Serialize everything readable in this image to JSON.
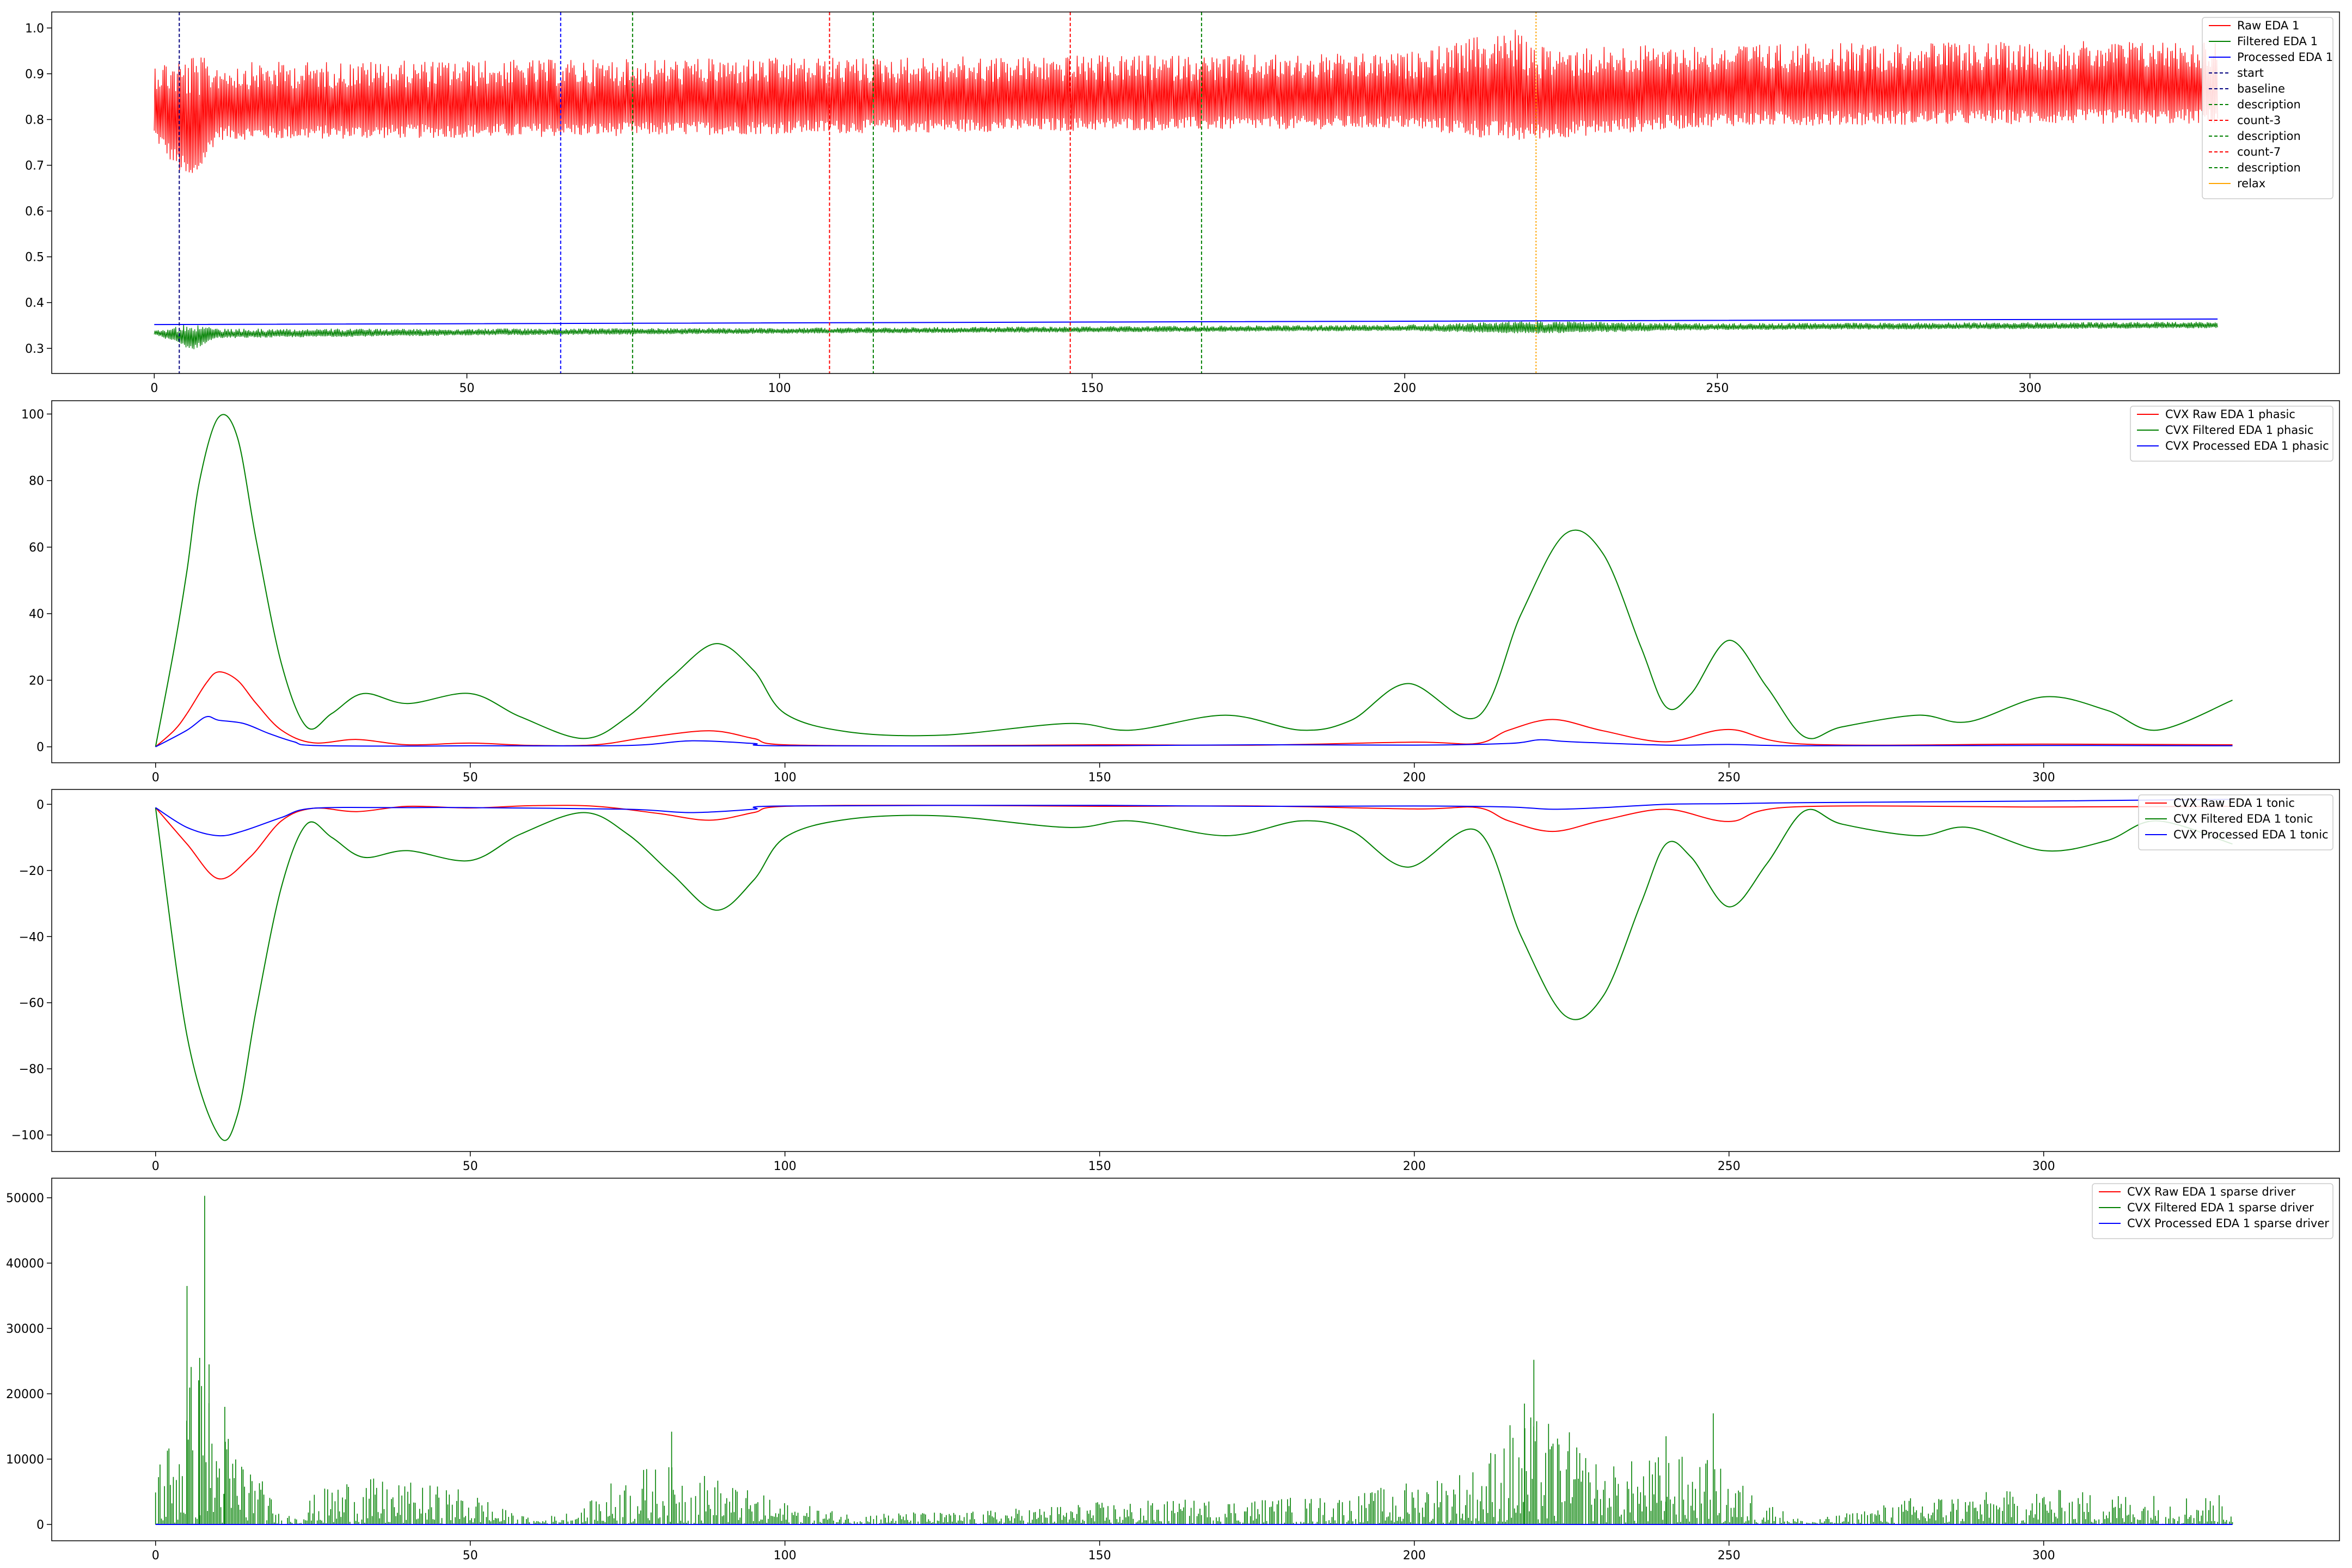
{
  "chart_data": [
    {
      "type": "line",
      "id": "raw-eda",
      "xlim": [
        -16.4,
        349.5
      ],
      "ylim": [
        0.245,
        1.035
      ],
      "xticks": [
        0,
        50,
        100,
        150,
        200,
        250,
        300
      ],
      "yticks": [
        0.3,
        0.4,
        0.5,
        0.6,
        0.7,
        0.8,
        0.9,
        1.0
      ],
      "ytick_labels": [
        "0.3",
        "0.4",
        "0.5",
        "0.6",
        "0.7",
        "0.8",
        "0.9",
        "1.0"
      ],
      "legend": "top-right",
      "series": [
        {
          "name": "Raw EDA 1",
          "color": "#ff0000",
          "style": "noise-band",
          "x": [
            0,
            3,
            6,
            10,
            50,
            100,
            150,
            200,
            218,
            220,
            250,
            300,
            330
          ],
          "low": [
            0.755,
            0.7,
            0.65,
            0.755,
            0.76,
            0.768,
            0.775,
            0.78,
            0.75,
            0.755,
            0.785,
            0.79,
            0.79
          ],
          "high": [
            0.93,
            0.935,
            0.945,
            0.925,
            0.93,
            0.935,
            0.94,
            0.945,
            1.0,
            0.96,
            0.965,
            0.97,
            0.975
          ]
        },
        {
          "name": "Filtered EDA 1",
          "color": "#008000",
          "style": "noise-band",
          "x": [
            0,
            3,
            6,
            10,
            50,
            100,
            150,
            200,
            220,
            250,
            300,
            330
          ],
          "low": [
            0.33,
            0.315,
            0.295,
            0.322,
            0.328,
            0.332,
            0.335,
            0.338,
            0.332,
            0.34,
            0.342,
            0.344
          ],
          "high": [
            0.34,
            0.345,
            0.36,
            0.343,
            0.343,
            0.345,
            0.348,
            0.352,
            0.36,
            0.355,
            0.357,
            0.358
          ]
        },
        {
          "name": "Processed EDA 1",
          "color": "#0000ff",
          "style": "line",
          "x": [
            0,
            330
          ],
          "y": [
            0.352,
            0.364
          ]
        }
      ],
      "events": [
        {
          "name": "start",
          "x": 4,
          "color": "#000080"
        },
        {
          "name": "baseline",
          "x": 65,
          "color": "#0000ff"
        },
        {
          "name": "description",
          "x": 76.5,
          "color": "#008000"
        },
        {
          "name": "count-3",
          "x": 108,
          "color": "#ff0000"
        },
        {
          "name": "description",
          "x": 115,
          "color": "#008000"
        },
        {
          "name": "count-7",
          "x": 146.5,
          "color": "#ff0000"
        },
        {
          "name": "description",
          "x": 167.5,
          "color": "#008000"
        },
        {
          "name": "relax",
          "x": 221,
          "color": "#ffa500"
        }
      ],
      "legend_entries": [
        {
          "label": "Raw EDA 1",
          "color": "#ff0000",
          "dash": "solid"
        },
        {
          "label": "Filtered EDA 1",
          "color": "#008000",
          "dash": "solid"
        },
        {
          "label": "Processed EDA 1",
          "color": "#0000ff",
          "dash": "solid"
        },
        {
          "label": "start",
          "color": "#000080",
          "dash": "dashed"
        },
        {
          "label": "baseline",
          "color": "#000080",
          "dash": "dashed"
        },
        {
          "label": "description",
          "color": "#008000",
          "dash": "dashed"
        },
        {
          "label": "count-3",
          "color": "#ff0000",
          "dash": "dashed"
        },
        {
          "label": "description",
          "color": "#008000",
          "dash": "dashed"
        },
        {
          "label": "count-7",
          "color": "#ff0000",
          "dash": "dashed"
        },
        {
          "label": "description",
          "color": "#008000",
          "dash": "dashed"
        },
        {
          "label": "relax",
          "color": "#ffa500",
          "dash": "solid"
        }
      ]
    },
    {
      "type": "line",
      "id": "phasic",
      "xlim": [
        -16.5,
        347
      ],
      "ylim": [
        -4.8,
        104
      ],
      "xticks": [
        0,
        50,
        100,
        150,
        200,
        250,
        300
      ],
      "yticks": [
        0,
        20,
        40,
        60,
        80,
        100
      ],
      "ytick_labels": [
        "0",
        "20",
        "40",
        "60",
        "80",
        "100"
      ],
      "legend": "top-right",
      "series": [
        {
          "name": "CVX Raw EDA 1 phasic",
          "color": "#ff0000",
          "x": [
            0,
            3,
            5,
            8,
            10,
            13,
            16,
            20,
            25,
            32,
            40,
            50,
            60,
            70,
            78,
            88,
            95,
            100,
            125,
            150,
            175,
            200,
            210,
            215,
            222,
            230,
            240,
            250,
            262,
            300,
            330
          ],
          "y": [
            0,
            5,
            10,
            19,
            22.5,
            20,
            13,
            5,
            1.2,
            2.2,
            0.6,
            1.1,
            0.4,
            0.6,
            2.8,
            4.8,
            2.5,
            0.6,
            0.3,
            0.6,
            0.5,
            1.4,
            1,
            5,
            8.2,
            4.8,
            1.5,
            5.2,
            0.8,
            0.8,
            0.6
          ]
        },
        {
          "name": "CVX Filtered EDA 1 phasic",
          "color": "#008000",
          "x": [
            0,
            3,
            5,
            7,
            10,
            13,
            16,
            20,
            24,
            28,
            33,
            40,
            50,
            58,
            68,
            75,
            82,
            89,
            95,
            100,
            110,
            125,
            145,
            155,
            170,
            182,
            190,
            199,
            210,
            217,
            224,
            230,
            236,
            240,
            244,
            250,
            256,
            262,
            268,
            280,
            288,
            300,
            310,
            318,
            330
          ],
          "y": [
            0,
            30,
            53,
            80,
            99,
            93,
            62,
            25,
            6,
            10,
            16,
            13,
            16,
            9,
            2.5,
            9,
            21,
            31,
            23,
            10,
            4.5,
            3.5,
            7,
            5,
            9.5,
            5,
            8,
            19,
            9,
            40,
            64,
            58,
            30,
            12,
            16,
            32,
            18,
            3,
            6,
            9.5,
            7.5,
            15,
            11,
            5,
            14
          ]
        },
        {
          "name": "CVX Processed EDA 1 phasic",
          "color": "#0000ff",
          "x": [
            0,
            5,
            8,
            10,
            14,
            18,
            22,
            25,
            40,
            50,
            75,
            85,
            95,
            100,
            150,
            175,
            200,
            215,
            220,
            225,
            240,
            250,
            262,
            300,
            330
          ],
          "y": [
            0,
            5,
            9,
            8,
            7,
            4,
            1.5,
            0.4,
            0.2,
            0.3,
            0.4,
            1.8,
            1,
            0.3,
            0.3,
            0.6,
            0.5,
            1,
            2.1,
            1.5,
            0.5,
            0.7,
            0.3,
            0.4,
            0.3
          ]
        }
      ],
      "legend_entries": [
        {
          "label": "CVX Raw EDA 1 phasic",
          "color": "#ff0000"
        },
        {
          "label": "CVX Filtered EDA 1 phasic",
          "color": "#008000"
        },
        {
          "label": "CVX Processed EDA 1 phasic",
          "color": "#0000ff"
        }
      ]
    },
    {
      "type": "line",
      "id": "tonic",
      "xlim": [
        -16.5,
        347
      ],
      "ylim": [
        -105,
        4.5
      ],
      "xticks": [
        0,
        50,
        100,
        150,
        200,
        250,
        300
      ],
      "yticks": [
        0,
        -20,
        -40,
        -60,
        -80,
        -100
      ],
      "ytick_labels": [
        "0",
        "−20",
        "−40",
        "−60",
        "−80",
        "−100"
      ],
      "legend": "top-right",
      "series": [
        {
          "name": "CVX Raw EDA 1 tonic",
          "color": "#ff0000",
          "x": [
            0,
            5,
            10,
            15,
            20,
            25,
            32,
            40,
            50,
            60,
            70,
            80,
            88,
            95,
            100,
            125,
            150,
            175,
            200,
            210,
            215,
            222,
            230,
            240,
            250,
            260,
            300,
            330
          ],
          "y": [
            -1,
            -12,
            -22.5,
            -16,
            -5,
            -1.2,
            -2.2,
            -0.6,
            -1.1,
            -0.4,
            -0.6,
            -2.8,
            -4.8,
            -2.5,
            -0.6,
            -0.3,
            -0.6,
            -0.5,
            -1.4,
            -1,
            -5,
            -8.2,
            -4.8,
            -1.5,
            -5.2,
            -0.8,
            -0.8,
            -0.6
          ]
        },
        {
          "name": "CVX Filtered EDA 1 tonic",
          "color": "#008000",
          "x": [
            0,
            5,
            10,
            13,
            16,
            20,
            24,
            28,
            33,
            40,
            50,
            58,
            68,
            75,
            82,
            89,
            95,
            100,
            110,
            125,
            145,
            155,
            170,
            182,
            190,
            199,
            210,
            217,
            224,
            230,
            236,
            240,
            244,
            250,
            256,
            262,
            268,
            280,
            288,
            300,
            310,
            318,
            330
          ],
          "y": [
            -1,
            -70,
            -100,
            -94,
            -62,
            -25,
            -6,
            -10,
            -16,
            -14,
            -17,
            -9,
            -2.5,
            -9,
            -21,
            -32,
            -23,
            -10,
            -4.5,
            -3.5,
            -7,
            -5,
            -9.5,
            -5,
            -8,
            -19,
            -8,
            -40,
            -64,
            -58,
            -30,
            -12,
            -16,
            -31,
            -18,
            -2,
            -6,
            -9.5,
            -7,
            -14,
            -11,
            -5,
            -12
          ]
        },
        {
          "name": "CVX Processed EDA 1 tonic",
          "color": "#0000ff",
          "x": [
            0,
            5,
            10,
            14,
            20,
            25,
            40,
            50,
            75,
            85,
            95,
            100,
            150,
            175,
            200,
            215,
            222,
            230,
            240,
            250,
            262,
            300,
            330
          ],
          "y": [
            -1,
            -7,
            -9.5,
            -8,
            -4,
            -1.2,
            -1,
            -1,
            -1.5,
            -2.5,
            -1.5,
            -0.5,
            -0.3,
            -0.6,
            -0.5,
            -0.8,
            -1.5,
            -1,
            0,
            0.2,
            0.5,
            1,
            1.5
          ]
        }
      ],
      "legend_entries": [
        {
          "label": "CVX Raw EDA 1 tonic",
          "color": "#ff0000"
        },
        {
          "label": "CVX Filtered EDA 1 tonic",
          "color": "#008000"
        },
        {
          "label": "CVX Processed EDA 1 tonic",
          "color": "#0000ff"
        }
      ]
    },
    {
      "type": "bar",
      "id": "sparse-driver",
      "xlim": [
        -16.5,
        347
      ],
      "ylim": [
        -2500,
        53000
      ],
      "xticks": [
        0,
        50,
        100,
        150,
        200,
        250,
        300
      ],
      "yticks": [
        0,
        10000,
        20000,
        30000,
        40000,
        50000
      ],
      "ytick_labels": [
        "0",
        "10000",
        "20000",
        "30000",
        "40000",
        "50000"
      ],
      "legend": "top-right",
      "series": [
        {
          "name": "CVX Filtered EDA 1 sparse driver",
          "color": "#008000",
          "style": "spikes",
          "envelope_x": [
            0,
            3,
            5,
            7,
            9,
            11,
            14,
            18,
            20,
            25,
            30,
            40,
            50,
            55,
            60,
            68,
            72,
            78,
            82,
            86,
            95,
            100,
            110,
            130,
            150,
            170,
            190,
            200,
            210,
            215,
            220,
            225,
            230,
            240,
            247,
            252,
            258,
            262,
            270,
            280,
            300,
            310,
            330
          ],
          "envelope_y": [
            11000,
            15000,
            26000,
            25000,
            19000,
            15000,
            12000,
            5000,
            1000,
            4500,
            7500,
            6500,
            5500,
            2500,
            800,
            2500,
            6500,
            9000,
            9000,
            8500,
            5000,
            3500,
            1800,
            2000,
            3500,
            4000,
            4500,
            7000,
            9000,
            16000,
            17000,
            14000,
            9000,
            11000,
            10000,
            6500,
            2500,
            500,
            2000,
            4500,
            5500,
            5000,
            4500
          ],
          "peaks": [
            {
              "x": 5,
              "y": 36500
            },
            {
              "x": 7.8,
              "y": 50300
            },
            {
              "x": 7,
              "y": 25500
            },
            {
              "x": 8.5,
              "y": 24500
            },
            {
              "x": 11,
              "y": 18000
            },
            {
              "x": 82,
              "y": 14200
            },
            {
              "x": 219,
              "y": 25200
            },
            {
              "x": 217.5,
              "y": 18500
            },
            {
              "x": 247.5,
              "y": 17000
            },
            {
              "x": 240,
              "y": 13500
            }
          ],
          "spike_count": 1400
        },
        {
          "name": "CVX Raw EDA 1 sparse driver",
          "color": "#ff0000",
          "style": "none"
        },
        {
          "name": "CVX Processed EDA 1 sparse driver",
          "color": "#0000ff",
          "style": "baseline"
        }
      ],
      "legend_entries": [
        {
          "label": "CVX Raw EDA 1 sparse driver",
          "color": "#ff0000"
        },
        {
          "label": "CVX Filtered EDA 1 sparse driver",
          "color": "#008000"
        },
        {
          "label": "CVX Processed EDA 1 sparse driver",
          "color": "#0000ff"
        }
      ]
    }
  ]
}
